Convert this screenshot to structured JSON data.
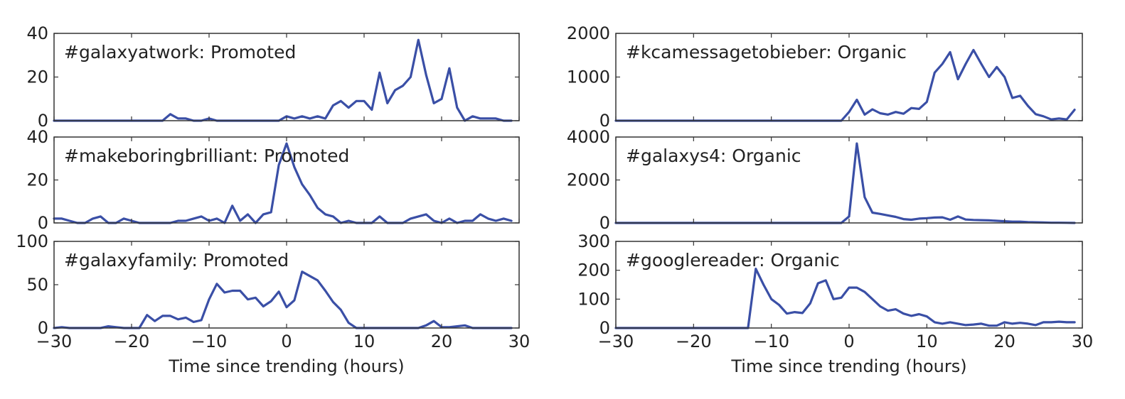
{
  "chart_data": [
    {
      "type": "line",
      "title": "#galaxyatwork: Promoted",
      "xlabel": "",
      "ylabel": "",
      "xlim": [
        -30,
        30
      ],
      "ylim": [
        0,
        40
      ],
      "yticks": [
        0,
        20,
        40
      ],
      "xticks": [],
      "grid": false,
      "series": [
        {
          "x": [
            -30,
            -29,
            -28,
            -27,
            -26,
            -25,
            -24,
            -23,
            -22,
            -21,
            -20,
            -19,
            -18,
            -17,
            -16,
            -15,
            -14,
            -13,
            -12,
            -11,
            -10,
            -9,
            -8,
            -7,
            -6,
            -5,
            -4,
            -3,
            -2,
            -1,
            0,
            1,
            2,
            3,
            4,
            5,
            6,
            7,
            8,
            9,
            10,
            11,
            12,
            13,
            14,
            15,
            16,
            17,
            18,
            19,
            20,
            21,
            22,
            23,
            24,
            25,
            26,
            27,
            28,
            29
          ],
          "y": [
            0,
            0,
            0,
            0,
            0,
            0,
            0,
            0,
            0,
            0,
            0,
            0,
            0,
            0,
            0,
            3,
            1,
            1,
            0,
            0,
            1,
            0,
            0,
            0,
            0,
            0,
            0,
            0,
            0,
            0,
            2,
            1,
            2,
            1,
            2,
            1,
            7,
            9,
            6,
            9,
            9,
            5,
            22,
            8,
            14,
            16,
            20,
            37,
            21,
            8,
            10,
            24,
            6,
            0,
            2,
            1,
            1,
            1,
            0,
            0
          ]
        }
      ]
    },
    {
      "type": "line",
      "title": "#makeboringbrilliant: Promoted",
      "xlabel": "",
      "ylabel": "",
      "xlim": [
        -30,
        30
      ],
      "ylim": [
        0,
        40
      ],
      "yticks": [
        0,
        20,
        40
      ],
      "xticks": [],
      "grid": false,
      "series": [
        {
          "x": [
            -30,
            -29,
            -28,
            -27,
            -26,
            -25,
            -24,
            -23,
            -22,
            -21,
            -20,
            -19,
            -18,
            -17,
            -16,
            -15,
            -14,
            -13,
            -12,
            -11,
            -10,
            -9,
            -8,
            -7,
            -6,
            -5,
            -4,
            -3,
            -2,
            -1,
            0,
            1,
            2,
            3,
            4,
            5,
            6,
            7,
            8,
            9,
            10,
            11,
            12,
            13,
            14,
            15,
            16,
            17,
            18,
            19,
            20,
            21,
            22,
            23,
            24,
            25,
            26,
            27,
            28,
            29
          ],
          "y": [
            2,
            2,
            1,
            0,
            0,
            2,
            3,
            0,
            0,
            2,
            1,
            0,
            0,
            0,
            0,
            0,
            1,
            1,
            2,
            3,
            1,
            2,
            0,
            8,
            1,
            4,
            0,
            4,
            5,
            27,
            37,
            26,
            18,
            13,
            7,
            4,
            3,
            0,
            1,
            0,
            0,
            0,
            3,
            0,
            0,
            0,
            2,
            3,
            4,
            1,
            0,
            2,
            0,
            1,
            1,
            4,
            2,
            1,
            2,
            1
          ]
        }
      ]
    },
    {
      "type": "line",
      "title": "#galaxyfamily: Promoted",
      "xlabel": "Time since trending (hours)",
      "ylabel": "",
      "xlim": [
        -30,
        30
      ],
      "ylim": [
        0,
        100
      ],
      "yticks": [
        0,
        50,
        100
      ],
      "xticks": [
        "−30",
        "−20",
        "−10",
        "0",
        "10",
        "20",
        "30"
      ],
      "grid": false,
      "series": [
        {
          "x": [
            -30,
            -29,
            -28,
            -27,
            -26,
            -25,
            -24,
            -23,
            -22,
            -21,
            -20,
            -19,
            -18,
            -17,
            -16,
            -15,
            -14,
            -13,
            -12,
            -11,
            -10,
            -9,
            -8,
            -7,
            -6,
            -5,
            -4,
            -3,
            -2,
            -1,
            0,
            1,
            2,
            3,
            4,
            5,
            6,
            7,
            8,
            9,
            10,
            11,
            12,
            13,
            14,
            15,
            16,
            17,
            18,
            19,
            20,
            21,
            22,
            23,
            24,
            25,
            26,
            27,
            28,
            29
          ],
          "y": [
            0,
            1,
            0,
            0,
            0,
            0,
            0,
            2,
            1,
            0,
            0,
            0,
            15,
            8,
            14,
            14,
            10,
            12,
            7,
            9,
            33,
            51,
            41,
            43,
            43,
            33,
            35,
            25,
            31,
            42,
            24,
            32,
            65,
            60,
            55,
            43,
            30,
            21,
            6,
            0,
            0,
            0,
            0,
            0,
            0,
            0,
            0,
            0,
            3,
            8,
            1,
            1,
            2,
            3,
            0,
            0,
            0,
            0,
            0,
            0
          ]
        }
      ]
    },
    {
      "type": "line",
      "title": "#kcamessagetobieber: Organic",
      "xlabel": "",
      "ylabel": "",
      "xlim": [
        -30,
        30
      ],
      "ylim": [
        0,
        2000
      ],
      "yticks": [
        0,
        1000,
        2000
      ],
      "xticks": [],
      "grid": false,
      "series": [
        {
          "x": [
            -30,
            -29,
            -28,
            -27,
            -26,
            -25,
            -24,
            -23,
            -22,
            -21,
            -20,
            -19,
            -18,
            -17,
            -16,
            -15,
            -14,
            -13,
            -12,
            -11,
            -10,
            -9,
            -8,
            -7,
            -6,
            -5,
            -4,
            -3,
            -2,
            -1,
            0,
            1,
            2,
            3,
            4,
            5,
            6,
            7,
            8,
            9,
            10,
            11,
            12,
            13,
            14,
            15,
            16,
            17,
            18,
            19,
            20,
            21,
            22,
            23,
            24,
            25,
            26,
            27,
            28,
            29
          ],
          "y": [
            0,
            0,
            0,
            0,
            0,
            0,
            0,
            0,
            0,
            0,
            0,
            0,
            0,
            0,
            0,
            0,
            0,
            0,
            0,
            0,
            0,
            0,
            0,
            0,
            0,
            0,
            0,
            0,
            0,
            0,
            200,
            480,
            140,
            260,
            170,
            140,
            200,
            160,
            290,
            270,
            430,
            1100,
            1300,
            1570,
            950,
            1300,
            1620,
            1300,
            1000,
            1230,
            1000,
            520,
            570,
            340,
            150,
            100,
            30,
            50,
            30,
            250
          ]
        }
      ]
    },
    {
      "type": "line",
      "title": "#galaxys4: Organic",
      "xlabel": "",
      "ylabel": "",
      "xlim": [
        -30,
        30
      ],
      "ylim": [
        0,
        4000
      ],
      "yticks": [
        0,
        2000,
        4000
      ],
      "xticks": [],
      "grid": false,
      "series": [
        {
          "x": [
            -30,
            -29,
            -28,
            -27,
            -26,
            -25,
            -24,
            -23,
            -22,
            -21,
            -20,
            -19,
            -18,
            -17,
            -16,
            -15,
            -14,
            -13,
            -12,
            -11,
            -10,
            -9,
            -8,
            -7,
            -6,
            -5,
            -4,
            -3,
            -2,
            -1,
            0,
            1,
            2,
            3,
            4,
            5,
            6,
            7,
            8,
            9,
            10,
            11,
            12,
            13,
            14,
            15,
            16,
            17,
            18,
            19,
            20,
            21,
            22,
            23,
            24,
            25,
            26,
            27,
            28,
            29
          ],
          "y": [
            0,
            0,
            0,
            0,
            0,
            0,
            0,
            0,
            0,
            0,
            0,
            0,
            0,
            0,
            0,
            0,
            0,
            0,
            0,
            0,
            0,
            0,
            0,
            0,
            0,
            0,
            0,
            0,
            0,
            0,
            300,
            3700,
            1200,
            480,
            420,
            350,
            280,
            180,
            150,
            200,
            220,
            250,
            260,
            150,
            300,
            160,
            140,
            130,
            120,
            100,
            80,
            60,
            60,
            40,
            30,
            20,
            10,
            10,
            5,
            0
          ]
        }
      ]
    },
    {
      "type": "line",
      "title": "#googlereader: Organic",
      "xlabel": "Time since trending (hours)",
      "ylabel": "",
      "xlim": [
        -30,
        30
      ],
      "ylim": [
        0,
        300
      ],
      "yticks": [
        0,
        100,
        200,
        300
      ],
      "xticks": [
        "−30",
        "−20",
        "−10",
        "0",
        "10",
        "20",
        "30"
      ],
      "grid": false,
      "series": [
        {
          "x": [
            -30,
            -29,
            -28,
            -27,
            -26,
            -25,
            -24,
            -23,
            -22,
            -21,
            -20,
            -19,
            -18,
            -17,
            -16,
            -15,
            -14,
            -13,
            -12,
            -11,
            -10,
            -9,
            -8,
            -7,
            -6,
            -5,
            -4,
            -3,
            -2,
            -1,
            0,
            1,
            2,
            3,
            4,
            5,
            6,
            7,
            8,
            9,
            10,
            11,
            12,
            13,
            14,
            15,
            16,
            17,
            18,
            19,
            20,
            21,
            22,
            23,
            24,
            25,
            26,
            27,
            28,
            29
          ],
          "y": [
            0,
            0,
            0,
            0,
            0,
            0,
            0,
            0,
            0,
            0,
            0,
            0,
            0,
            0,
            0,
            0,
            0,
            0,
            205,
            150,
            100,
            80,
            50,
            55,
            52,
            85,
            155,
            165,
            100,
            105,
            140,
            140,
            125,
            100,
            75,
            60,
            65,
            50,
            42,
            48,
            40,
            20,
            15,
            20,
            15,
            10,
            12,
            15,
            8,
            8,
            20,
            15,
            18,
            15,
            10,
            20,
            20,
            22,
            20,
            20
          ]
        }
      ]
    }
  ]
}
